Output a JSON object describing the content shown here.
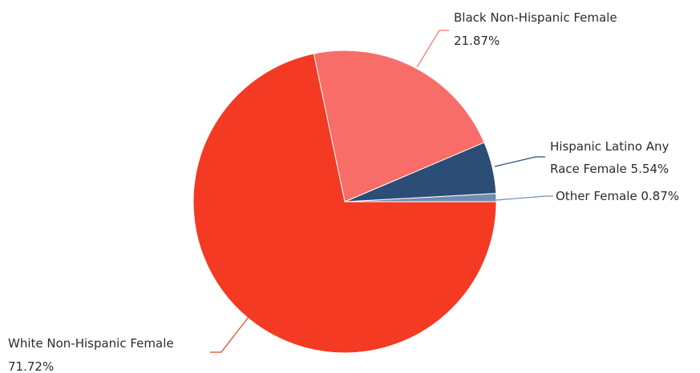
{
  "chart_data": {
    "type": "pie",
    "title": "",
    "slices": [
      {
        "name": "Other Female",
        "value": 0.87,
        "pct_label": "0.87%",
        "color": "#6e8db0"
      },
      {
        "name": "Hispanic Latino Any Race Female",
        "value": 5.54,
        "pct_label": "5.54%",
        "color": "#2c4d75"
      },
      {
        "name": "Black Non-Hispanic Female",
        "value": 21.87,
        "pct_label": "21.87%",
        "color": "#f86d68"
      },
      {
        "name": "White Non-Hispanic Female",
        "value": 71.72,
        "pct_label": "71.72%",
        "color": "#f43a22"
      }
    ],
    "labels": {
      "black_line1": "Black Non-Hispanic Female",
      "black_line2": "21.87%",
      "hispanic_line1": "Hispanic Latino Any",
      "hispanic_line2": "Race Female 5.54%",
      "other_line1": "Other Female 0.87%",
      "white_line1": "White Non-Hispanic Female",
      "white_line2": "71.72%"
    },
    "legend": "none"
  }
}
